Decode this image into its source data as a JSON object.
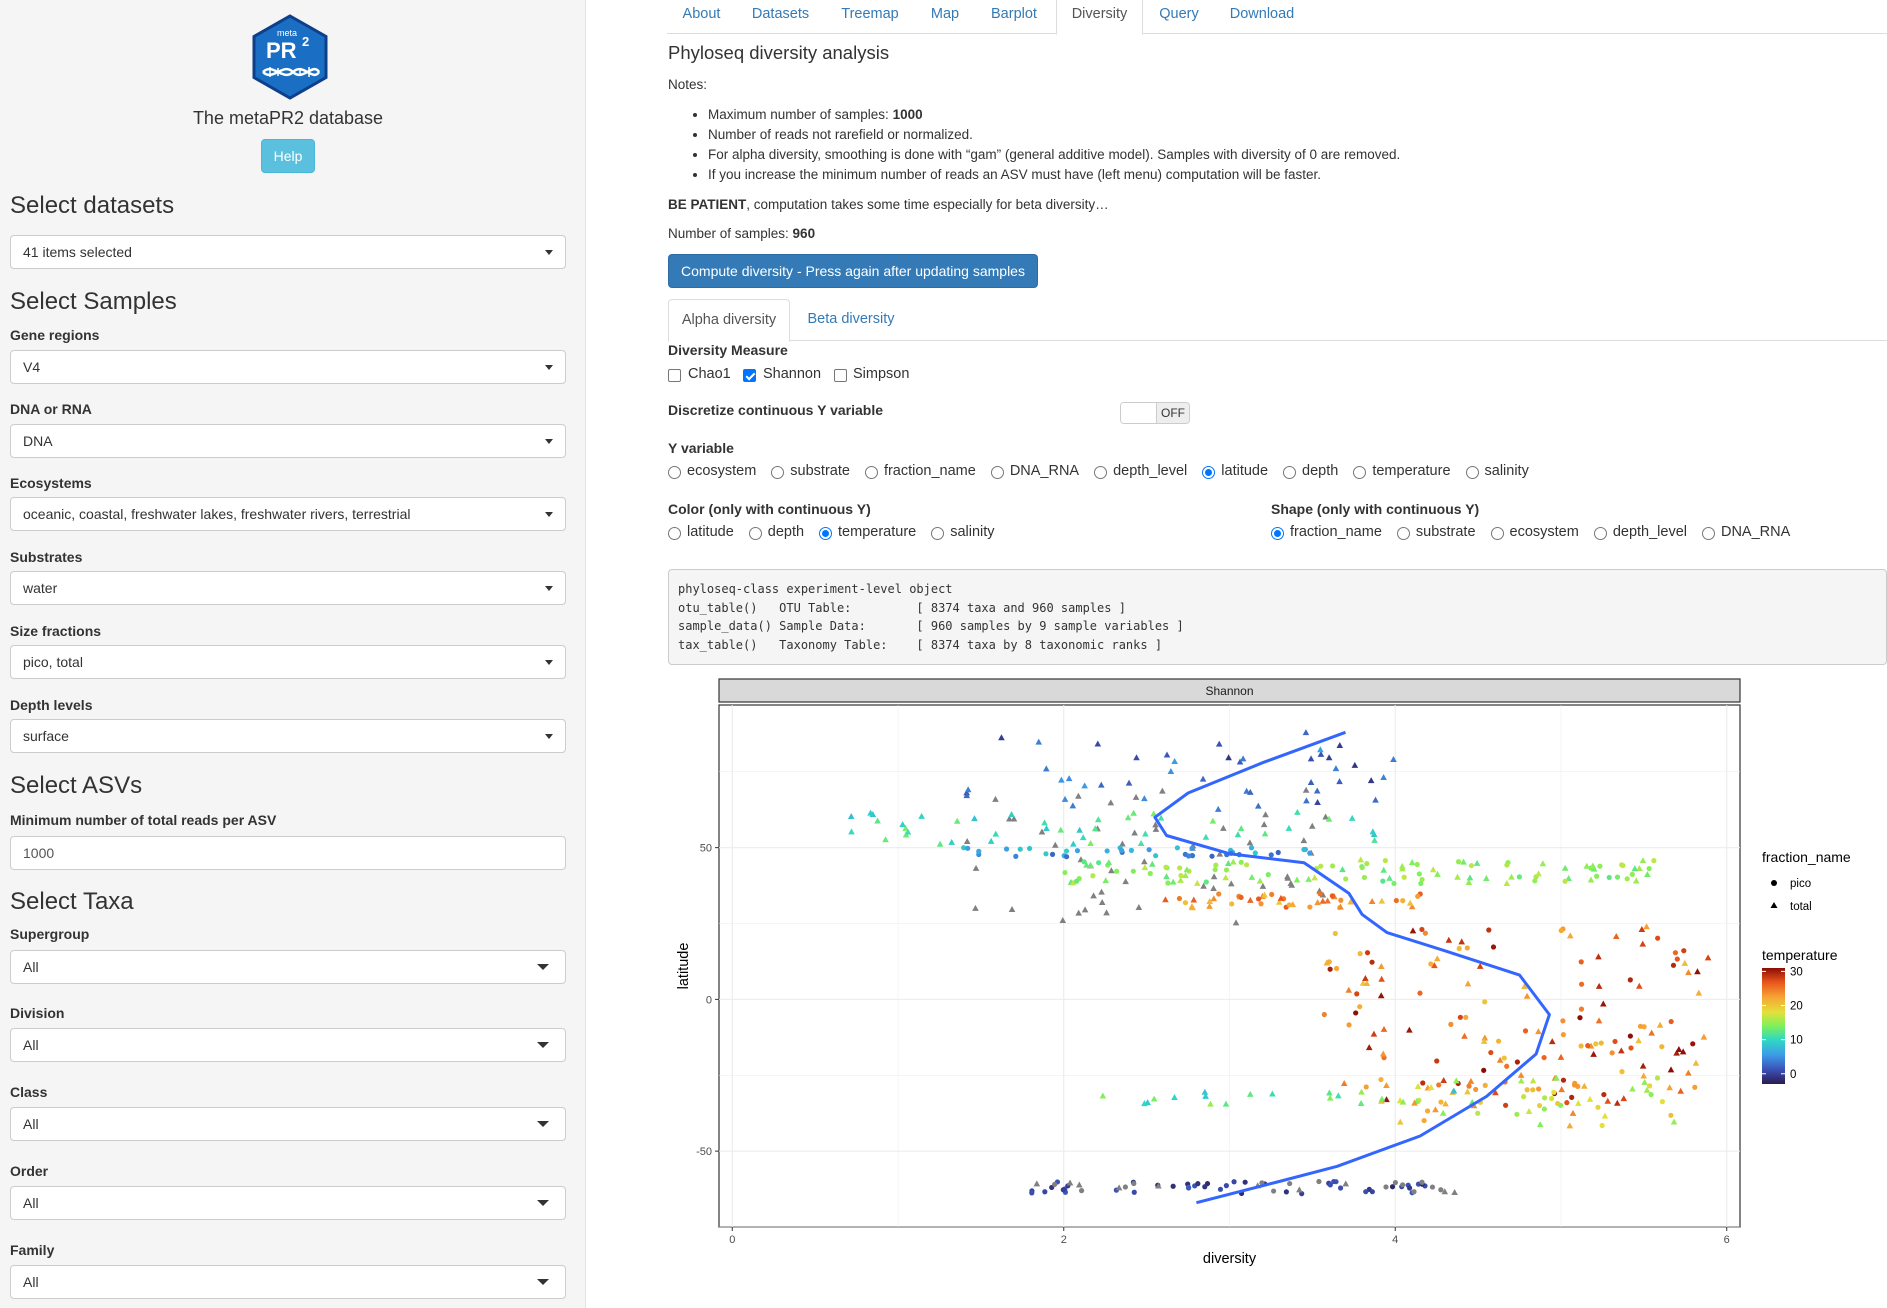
{
  "sidebar": {
    "logo_text": {
      "meta": "meta",
      "pr": "PR",
      "two": "2"
    },
    "app_title": "The metaPR2 database",
    "help_label": "Help",
    "select_datasets": {
      "heading": "Select datasets",
      "value": "41 items selected"
    },
    "select_samples": {
      "heading": "Select Samples",
      "gene_regions": {
        "label": "Gene regions",
        "value": "V4"
      },
      "dna_rna": {
        "label": "DNA or RNA",
        "value": "DNA"
      },
      "ecosystems": {
        "label": "Ecosystems",
        "value": "oceanic, coastal, freshwater lakes, freshwater rivers, terrestrial"
      },
      "substrates": {
        "label": "Substrates",
        "value": "water"
      },
      "size_fractions": {
        "label": "Size fractions",
        "value": "pico, total"
      },
      "depth_levels": {
        "label": "Depth levels",
        "value": "surface"
      }
    },
    "select_asvs": {
      "heading": "Select ASVs",
      "min_reads_label": "Minimum number of total reads per ASV",
      "min_reads_value": "1000"
    },
    "select_taxa": {
      "heading": "Select Taxa",
      "supergroup": {
        "label": "Supergroup",
        "value": "All"
      },
      "division": {
        "label": "Division",
        "value": "All"
      },
      "class": {
        "label": "Class",
        "value": "All"
      },
      "order": {
        "label": "Order",
        "value": "All"
      },
      "family": {
        "label": "Family",
        "value": "All"
      }
    }
  },
  "nav": {
    "tabs": [
      "About",
      "Datasets",
      "Treemap",
      "Map",
      "Barplot",
      "Diversity",
      "Query",
      "Download"
    ],
    "active": "Diversity"
  },
  "main": {
    "title": "Phyloseq diversity analysis",
    "notes_label": "Notes:",
    "notes": {
      "n1_prefix": "Maximum number of samples: ",
      "n1_value": "1000",
      "n2": "Number of reads not rarefield or normalized.",
      "n3": "For alpha diversity, smoothing is done with “gam” (general additive model). Samples with diversity of 0 are removed.",
      "n4": "If you increase the minimum number of reads an ASV must have (left menu) computation will be faster."
    },
    "patience_bold": "BE PATIENT",
    "patience_rest": ", computation takes some time especially for beta diversity…",
    "num_samples_label": "Number of samples: ",
    "num_samples_value": "960",
    "compute_label": "Compute diversity - Press again after updating samples",
    "subtabs": [
      "Alpha diversity",
      "Beta diversity"
    ],
    "diversity_measure": {
      "label": "Diversity Measure",
      "options": [
        {
          "label": "Chao1",
          "checked": false
        },
        {
          "label": "Shannon",
          "checked": true
        },
        {
          "label": "Simpson",
          "checked": false
        }
      ]
    },
    "discretize": {
      "label": "Discretize continuous Y variable",
      "state": "OFF"
    },
    "y_variable": {
      "label": "Y variable",
      "options": [
        "ecosystem",
        "substrate",
        "fraction_name",
        "DNA_RNA",
        "depth_level",
        "latitude",
        "depth",
        "temperature",
        "salinity"
      ],
      "selected": "latitude"
    },
    "color": {
      "label": "Color (only with continuous Y)",
      "options": [
        "latitude",
        "depth",
        "temperature",
        "salinity"
      ],
      "selected": "temperature"
    },
    "shape": {
      "label": "Shape (only with continuous Y)",
      "options": [
        "fraction_name",
        "substrate",
        "ecosystem",
        "depth_level",
        "DNA_RNA"
      ],
      "selected": "fraction_name"
    },
    "phyloseq_output": [
      "phyloseq-class experiment-level object",
      "otu_table()   OTU Table:         [ 8374 taxa and 960 samples ]",
      "sample_data() Sample Data:       [ 960 samples by 9 sample variables ]",
      "tax_table()   Taxonomy Table:    [ 8374 taxa by 8 taxonomic ranks ]"
    ]
  },
  "chart_data": {
    "type": "scatter",
    "facet_title": "Shannon",
    "xlabel": "diversity",
    "ylabel": "latitude",
    "xlim": [
      -0.08,
      6.08
    ],
    "ylim": [
      -75,
      97
    ],
    "x_ticks": [
      0,
      2,
      4,
      6
    ],
    "y_ticks": [
      -50,
      0,
      50
    ],
    "grid": true,
    "legend_placement": "right",
    "shape_legend": {
      "title": "fraction_name",
      "entries": [
        "pico",
        "total"
      ]
    },
    "color_legend": {
      "title": "temperature",
      "ticks": [
        0,
        10,
        20,
        30
      ],
      "range": [
        -3,
        31
      ]
    },
    "smooth_line": {
      "color": "#3366ff",
      "x": [
        3.7,
        3.2,
        2.75,
        2.55,
        2.62,
        3.0,
        3.45,
        3.72,
        3.8,
        3.95,
        4.3,
        4.75,
        4.93,
        4.85,
        4.55,
        4.15,
        3.65,
        3.3,
        2.8
      ],
      "y": [
        88,
        78,
        68,
        60,
        54,
        48,
        45,
        35,
        28,
        22,
        16,
        8,
        -5,
        -18,
        -32,
        -45,
        -55,
        -60,
        -67
      ]
    },
    "series_clusters": [
      {
        "shape": "total",
        "x_range": [
          1.4,
          4.0
        ],
        "y_range": [
          60,
          88
        ],
        "temp_range": [
          -1,
          6
        ],
        "n": 45
      },
      {
        "shape": "total",
        "x_range": [
          1.4,
          3.6
        ],
        "y_range": [
          24,
          70
        ],
        "temp": "NA",
        "n": 55
      },
      {
        "shape": "pico",
        "x_range": [
          1.3,
          3.5
        ],
        "y_range": [
          47,
          50
        ],
        "temp_range": [
          2,
          10
        ],
        "n": 40
      },
      {
        "shape": "total",
        "x_range": [
          0.7,
          4.0
        ],
        "y_range": [
          51,
          62
        ],
        "temp_range": [
          8,
          14
        ],
        "n": 45
      },
      {
        "shape": "mixed",
        "x_range": [
          2.0,
          5.6
        ],
        "y_range": [
          38,
          46
        ],
        "temp_range": [
          12,
          17
        ],
        "n": 110
      },
      {
        "shape": "mixed",
        "x_range": [
          2.6,
          4.2
        ],
        "y_range": [
          30,
          35
        ],
        "temp_range": [
          20,
          27
        ],
        "n": 45
      },
      {
        "shape": "mixed",
        "x_range": [
          3.5,
          5.9
        ],
        "y_range": [
          -35,
          25
        ],
        "temp_range": [
          20,
          31
        ],
        "n": 150
      },
      {
        "shape": "mixed",
        "x_range": [
          4.0,
          5.7
        ],
        "y_range": [
          -42,
          -25
        ],
        "temp_range": [
          14,
          25
        ],
        "n": 60
      },
      {
        "shape": "total",
        "x_range": [
          2.2,
          4.8
        ],
        "y_range": [
          -35,
          -30
        ],
        "temp_range": [
          8,
          16
        ],
        "n": 20
      },
      {
        "shape": "pico",
        "x_range": [
          1.8,
          4.2
        ],
        "y_range": [
          -64,
          -60
        ],
        "temp_range": [
          -2,
          2
        ],
        "n": 45
      },
      {
        "shape": "mixed",
        "x_range": [
          1.8,
          4.4
        ],
        "y_range": [
          -64,
          -60
        ],
        "temp": "NA",
        "n": 25
      }
    ]
  }
}
